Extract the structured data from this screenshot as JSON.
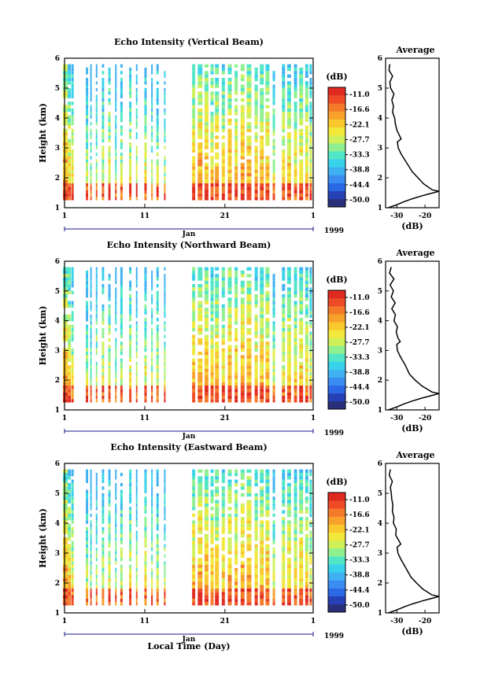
{
  "colors": {
    "scale": [
      "#2a2f7a",
      "#2640b5",
      "#2a68e6",
      "#3a8cf0",
      "#3fb1f2",
      "#38d2ea",
      "#50e6c6",
      "#8ff08f",
      "#d0f05a",
      "#f2e83a",
      "#f8c82c",
      "#f7a12a",
      "#f47a2a",
      "#ee4a26",
      "#e02a20"
    ]
  },
  "xlabel": "Local Time (Day)",
  "chart_data": [
    {
      "type": "heatmap",
      "title": "Echo Intensity (Vertical Beam)",
      "ylabel": "Height (km)",
      "ylim": [
        1,
        6
      ],
      "yticks": [
        "1",
        "2",
        "3",
        "4",
        "5",
        "6"
      ],
      "xticks": [
        "1",
        "11",
        "21",
        "1"
      ],
      "month_label": "Jan",
      "year_label": "1999",
      "colorbar_unit": "(dB)",
      "colorbar_ticks": [
        "-11.0",
        "-16.6",
        "-22.1",
        "-27.7",
        "-33.3",
        "-38.8",
        "-44.4",
        "-50.0"
      ],
      "profile": {
        "title": "Average",
        "xlabel": "(dB)",
        "xticks": [
          "-30",
          "-20"
        ],
        "xlim": [
          -34,
          -15
        ],
        "ylim": [
          1,
          6
        ],
        "yticks": [
          "1",
          "2",
          "3",
          "4",
          "5",
          "6"
        ],
        "height_km": [
          1.0,
          1.1,
          1.2,
          1.3,
          1.4,
          1.5,
          1.55,
          1.6,
          1.8,
          2.0,
          2.2,
          2.5,
          2.8,
          3.0,
          3.2,
          3.3,
          3.4,
          3.6,
          3.8,
          4.0,
          4.2,
          4.4,
          4.6,
          4.8,
          5.0,
          5.2,
          5.4,
          5.6,
          5.8
        ],
        "average_db": [
          -33.0,
          -30.0,
          -27.5,
          -24.5,
          -21.0,
          -17.0,
          -15.0,
          -17.5,
          -20.5,
          -22.5,
          -24.5,
          -26.5,
          -28.5,
          -29.5,
          -29.8,
          -28.5,
          -29.0,
          -30.0,
          -30.5,
          -30.8,
          -31.5,
          -31.2,
          -31.8,
          -31.0,
          -32.2,
          -32.5,
          -31.5,
          -32.8,
          -32.5
        ]
      }
    },
    {
      "type": "heatmap",
      "title": "Echo Intensity (Northward Beam)",
      "ylabel": "Height (km)",
      "ylim": [
        1,
        6
      ],
      "yticks": [
        "1",
        "2",
        "3",
        "4",
        "5",
        "6"
      ],
      "xticks": [
        "1",
        "11",
        "21",
        "1"
      ],
      "month_label": "Jan",
      "year_label": "1999",
      "colorbar_unit": "(dB)",
      "colorbar_ticks": [
        "-11.0",
        "-16.6",
        "-22.1",
        "-27.7",
        "-33.3",
        "-38.8",
        "-44.4",
        "-50.0"
      ],
      "profile": {
        "title": "Average",
        "xlabel": "(dB)",
        "xticks": [
          "-30",
          "-20"
        ],
        "xlim": [
          -34,
          -15
        ],
        "ylim": [
          1,
          6
        ],
        "yticks": [
          "1",
          "2",
          "3",
          "4",
          "5",
          "6"
        ],
        "height_km": [
          1.0,
          1.1,
          1.2,
          1.3,
          1.4,
          1.5,
          1.55,
          1.6,
          1.8,
          2.0,
          2.2,
          2.5,
          2.8,
          3.0,
          3.2,
          3.3,
          3.4,
          3.6,
          3.8,
          4.0,
          4.2,
          4.4,
          4.6,
          4.8,
          5.0,
          5.2,
          5.4,
          5.6,
          5.8
        ],
        "average_db": [
          -33.0,
          -30.0,
          -27.5,
          -24.5,
          -21.0,
          -17.0,
          -15.0,
          -17.5,
          -21.0,
          -23.5,
          -25.5,
          -27.0,
          -28.8,
          -29.8,
          -30.0,
          -28.8,
          -29.5,
          -30.2,
          -29.8,
          -31.0,
          -30.5,
          -31.8,
          -30.6,
          -32.0,
          -31.2,
          -32.4,
          -31.0,
          -32.6,
          -32.0
        ]
      }
    },
    {
      "type": "heatmap",
      "title": "Echo Intensity (Eastward Beam)",
      "ylabel": "Height (km)",
      "ylim": [
        1,
        6
      ],
      "yticks": [
        "1",
        "2",
        "3",
        "4",
        "5",
        "6"
      ],
      "xticks": [
        "1",
        "11",
        "21",
        "1"
      ],
      "month_label": "Jan",
      "year_label": "1999",
      "colorbar_unit": "(dB)",
      "colorbar_ticks": [
        "-11.0",
        "-16.6",
        "-22.1",
        "-27.7",
        "-33.3",
        "-38.8",
        "-44.4",
        "-50.0"
      ],
      "profile": {
        "title": "Average",
        "xlabel": "(dB)",
        "xticks": [
          "-30",
          "-20"
        ],
        "xlim": [
          -34,
          -15
        ],
        "ylim": [
          1,
          6
        ],
        "yticks": [
          "1",
          "2",
          "3",
          "4",
          "5",
          "6"
        ],
        "height_km": [
          1.0,
          1.1,
          1.2,
          1.3,
          1.4,
          1.5,
          1.55,
          1.6,
          1.8,
          2.0,
          2.2,
          2.5,
          2.8,
          3.0,
          3.2,
          3.3,
          3.4,
          3.6,
          3.8,
          4.0,
          4.2,
          4.4,
          4.6,
          4.8,
          5.0,
          5.2,
          5.4,
          5.6,
          5.8
        ],
        "average_db": [
          -33.0,
          -30.0,
          -27.5,
          -24.5,
          -21.0,
          -17.0,
          -15.0,
          -17.5,
          -20.8,
          -23.0,
          -25.0,
          -26.8,
          -28.6,
          -29.6,
          -29.9,
          -28.6,
          -29.2,
          -30.4,
          -30.2,
          -31.2,
          -31.0,
          -31.6,
          -31.4,
          -31.8,
          -32.0,
          -32.3,
          -31.6,
          -32.7,
          -32.3
        ]
      }
    }
  ]
}
